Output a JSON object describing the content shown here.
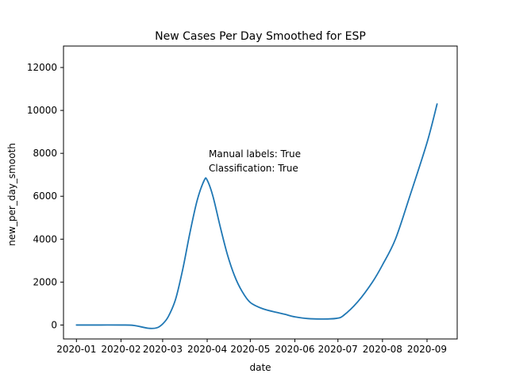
{
  "chart_data": {
    "type": "line",
    "title": "New Cases Per Day Smoothed for ESP",
    "xlabel": "date",
    "ylabel": "new_per_day_smooth",
    "x_ticks": [
      "2020-01",
      "2020-02",
      "2020-03",
      "2020-04",
      "2020-05",
      "2020-06",
      "2020-07",
      "2020-08",
      "2020-09"
    ],
    "y_ticks": [
      "0",
      "2000",
      "4000",
      "6000",
      "8000",
      "10000",
      "12000"
    ],
    "xlim": [
      "2019-12-23",
      "2020-09-22"
    ],
    "ylim": [
      -650,
      13000
    ],
    "grid": false,
    "line_color": "#1f77b4",
    "annotations": [
      "Manual labels: True",
      "Classification: True"
    ],
    "series": [
      {
        "x": [
          "2020-01-01",
          "2020-01-15",
          "2020-02-01",
          "2020-02-10",
          "2020-02-20",
          "2020-02-26",
          "2020-03-01",
          "2020-03-05",
          "2020-03-10",
          "2020-03-15",
          "2020-03-20",
          "2020-03-25",
          "2020-03-30",
          "2020-04-01",
          "2020-04-05",
          "2020-04-10",
          "2020-04-15",
          "2020-04-20",
          "2020-04-25",
          "2020-05-01",
          "2020-05-10",
          "2020-05-20",
          "2020-05-25",
          "2020-06-01",
          "2020-06-10",
          "2020-06-20",
          "2020-06-30",
          "2020-07-05",
          "2020-07-15",
          "2020-07-25",
          "2020-08-01",
          "2020-08-10",
          "2020-08-20",
          "2020-09-01",
          "2020-09-08"
        ],
        "y": [
          0,
          0,
          0,
          -20,
          -150,
          -130,
          50,
          400,
          1200,
          2600,
          4300,
          5800,
          6750,
          6750,
          6000,
          4600,
          3300,
          2300,
          1600,
          1050,
          750,
          580,
          500,
          380,
          300,
          280,
          310,
          450,
          1100,
          2000,
          2800,
          4000,
          6000,
          8500,
          10300
        ]
      }
    ]
  }
}
